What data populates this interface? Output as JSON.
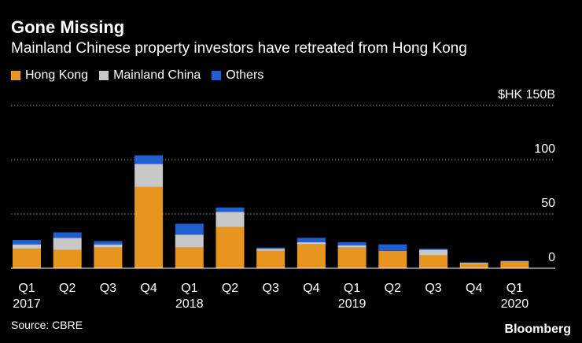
{
  "title": "Gone Missing",
  "subtitle": "Mainland Chinese property investors have retreated from Hong Kong",
  "source": "Source: CBRE",
  "logo": "Bloomberg",
  "colors": {
    "hong_kong": "#e8951f",
    "mainland_china": "#c8c8c8",
    "others": "#1f5fd1",
    "grid": "#8a8a8a",
    "text": "#ffffff"
  },
  "chart_data": {
    "type": "bar",
    "stacked": true,
    "title": "Gone Missing",
    "subtitle": "Mainland Chinese property investors have retreated from Hong Kong",
    "ylabel": "$HK 150B",
    "unit_label": "$HK 150B",
    "ylim": [
      0,
      150
    ],
    "yticks": [
      0,
      50,
      100,
      150
    ],
    "ytick_labels": [
      "0",
      "50",
      "100",
      "$HK 150B"
    ],
    "legend_position": "top-left",
    "categories": [
      "Q1",
      "Q2",
      "Q3",
      "Q4",
      "Q1",
      "Q2",
      "Q3",
      "Q4",
      "Q1",
      "Q2",
      "Q3",
      "Q4",
      "Q1"
    ],
    "year_labels": [
      {
        "index": 0,
        "label": "2017"
      },
      {
        "index": 4,
        "label": "2018"
      },
      {
        "index": 8,
        "label": "2019"
      },
      {
        "index": 12,
        "label": "2020"
      }
    ],
    "series": [
      {
        "name": "Hong Kong",
        "color": "#e8951f",
        "values": [
          18,
          17,
          19,
          75,
          19,
          38,
          16,
          22,
          19,
          16,
          12,
          4,
          6
        ]
      },
      {
        "name": "Mainland China",
        "color": "#c8c8c8",
        "values": [
          4,
          11,
          3,
          21,
          12,
          14,
          2,
          2,
          2,
          0,
          5,
          1,
          0.5
        ]
      },
      {
        "name": "Others",
        "color": "#1f5fd1",
        "values": [
          4,
          5,
          3,
          8,
          10,
          4,
          1,
          4,
          3,
          6,
          1,
          0.5,
          0.5
        ]
      }
    ]
  }
}
